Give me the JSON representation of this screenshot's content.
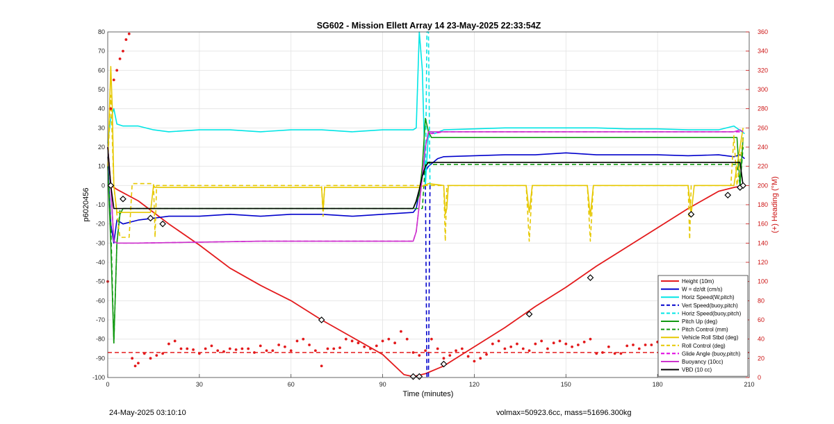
{
  "footer": {
    "timestamp": "24-May-2025 03:10:10",
    "mass_info": "volmax=50923.6cc, mass=51696.300kg"
  },
  "chart_data": {
    "type": "line",
    "title": "SG602 - Mission Ellett Array 14 23-May-2025 22:33:54Z",
    "xlabel": "Time (minutes)",
    "ylabel": "p6020456",
    "y2label": "(+) Heading (°M)",
    "xlim": [
      0,
      210
    ],
    "ylim": [
      -100,
      80
    ],
    "y2lim": [
      0,
      360
    ],
    "xticks": [
      0,
      30,
      60,
      90,
      120,
      150,
      180,
      210
    ],
    "yticks": [
      -100,
      -90,
      -80,
      -70,
      -60,
      -50,
      -40,
      -30,
      -20,
      -10,
      0,
      10,
      20,
      30,
      40,
      50,
      60,
      70,
      80
    ],
    "y2ticks": [
      0,
      20,
      40,
      60,
      80,
      100,
      120,
      140,
      160,
      180,
      200,
      220,
      240,
      260,
      280,
      300,
      320,
      340,
      360
    ],
    "grid": true,
    "legend_position": "bottom-right",
    "colors": {
      "height": "#e31a1c",
      "w": "#0000cc",
      "horiz_speed": "#00e5e5",
      "pitch": "#119911",
      "roll": "#e6c800",
      "glide_angle": "#e000e0",
      "buoyancy": "#cc33cc",
      "vbd": "#000000",
      "heading": "#e31a1c"
    },
    "legend": [
      {
        "name": "Height (10m)",
        "color": "#e31a1c",
        "dash": false
      },
      {
        "name": "W = dz/dt (cm/s)",
        "color": "#0000cc",
        "dash": false
      },
      {
        "name": "Horiz Speed(W,pitch)",
        "color": "#00e5e5",
        "dash": false
      },
      {
        "name": "Vert Speed(buoy,pitch)",
        "color": "#0000cc",
        "dash": true
      },
      {
        "name": "Horiz Speed(buoy,pitch)",
        "color": "#00e5e5",
        "dash": true
      },
      {
        "name": "Pitch Up (deg)",
        "color": "#119911",
        "dash": false
      },
      {
        "name": "Pitch Control (mm)",
        "color": "#119911",
        "dash": true
      },
      {
        "name": "Vehicle Roll Stbd (deg)",
        "color": "#e6c800",
        "dash": false
      },
      {
        "name": "Roll Control (deg)",
        "color": "#e6c800",
        "dash": true
      },
      {
        "name": "Glide Angle (buoy,pitch)",
        "color": "#e000e0",
        "dash": true
      },
      {
        "name": "Buoyancy (10cc)",
        "color": "#cc33cc",
        "dash": false
      },
      {
        "name": "VBD (10 cc)",
        "color": "#000000",
        "dash": false
      }
    ],
    "series": [
      {
        "name": "Height (10m)",
        "axis": "left",
        "x": [
          0,
          1,
          3,
          10,
          20,
          30,
          40,
          50,
          60,
          70,
          80,
          90,
          97,
          100,
          104,
          110,
          120,
          130,
          140,
          150,
          160,
          170,
          180,
          190,
          200,
          205,
          208.5
        ],
        "y": [
          20,
          0,
          -2,
          -8,
          -20,
          -31,
          -43,
          -52,
          -60,
          -70,
          -79,
          -88,
          -98.5,
          -99.5,
          -98,
          -94,
          -84,
          -74,
          -63,
          -53,
          -42,
          -32,
          -22,
          -12,
          -3,
          -1,
          0
        ]
      },
      {
        "name": "W = dz/dt (cm/s)",
        "axis": "left",
        "x": [
          0,
          1,
          2,
          3,
          5,
          10,
          15,
          20,
          30,
          40,
          50,
          60,
          70,
          80,
          90,
          100,
          101,
          103,
          105,
          108,
          110,
          120,
          130,
          140,
          150,
          160,
          170,
          180,
          190,
          200,
          205,
          207,
          208.5
        ],
        "y": [
          15,
          -20,
          -30,
          -18,
          -20,
          -18,
          -17,
          -16,
          -16,
          -15,
          -16,
          -15,
          -15,
          -16,
          -15,
          -14,
          -12,
          5,
          10,
          14,
          15,
          15.5,
          16,
          16,
          17,
          16,
          16,
          16,
          15.5,
          16,
          15,
          16,
          14
        ]
      },
      {
        "name": "Horiz Speed(W,pitch)",
        "axis": "left",
        "x": [
          0,
          1,
          2,
          3,
          5,
          10,
          15,
          20,
          30,
          40,
          50,
          60,
          70,
          80,
          90,
          100,
          101,
          102,
          103,
          104,
          105,
          106,
          107,
          110,
          120,
          130,
          140,
          150,
          160,
          170,
          180,
          190,
          200,
          205,
          208.5
        ],
        "y": [
          22,
          35,
          40,
          32,
          31,
          31,
          29,
          28,
          29,
          29,
          28,
          29,
          29,
          28,
          29,
          29,
          30,
          80,
          60,
          0,
          28,
          28,
          27,
          29,
          29.5,
          30,
          30,
          30,
          30,
          29.5,
          29.5,
          29,
          29,
          31,
          27
        ]
      },
      {
        "name": "Vert Speed(buoy,pitch)",
        "axis": "left",
        "dash": true,
        "x": [
          104,
          104.5,
          105,
          105.5
        ],
        "y": [
          0,
          -100,
          -100,
          0
        ]
      },
      {
        "name": "Horiz Speed(buoy,pitch)",
        "axis": "left",
        "dash": true,
        "x": [
          104,
          104.5,
          105,
          105.5
        ],
        "y": [
          0,
          80,
          80,
          0
        ]
      },
      {
        "name": "Pitch Up (deg)",
        "axis": "left",
        "x": [
          0,
          1,
          2,
          3,
          4,
          5,
          10,
          50,
          100,
          102,
          103,
          104,
          105,
          106,
          110,
          150,
          200,
          206,
          207,
          208
        ],
        "y": [
          10,
          -30,
          -82,
          -30,
          -15,
          -12,
          -12,
          -12,
          -12,
          -5,
          10,
          35,
          28,
          25,
          25,
          25,
          25,
          25,
          0,
          25
        ]
      },
      {
        "name": "Pitch Control (mm)",
        "axis": "left",
        "dash": true,
        "x": [
          0,
          1,
          2,
          3,
          4,
          5,
          10,
          50,
          100,
          103,
          104,
          105,
          106,
          110,
          150,
          200,
          206,
          207,
          208
        ],
        "y": [
          10,
          -20,
          -82,
          -30,
          -13,
          -12,
          -12,
          -12,
          -12,
          -12,
          12,
          12,
          11,
          11,
          11,
          11,
          11,
          0,
          20
        ]
      },
      {
        "name": "Vehicle Roll Stbd (deg)",
        "axis": "left",
        "x": [
          0,
          1,
          1.5,
          2,
          3,
          4,
          10,
          14,
          15,
          15.5,
          16,
          30,
          50,
          70,
          70.5,
          71,
          80,
          100,
          102,
          105,
          110,
          110.5,
          111,
          111.5,
          130,
          137,
          138,
          139,
          150,
          157,
          158,
          159,
          180,
          190,
          191,
          192,
          203,
          204,
          205,
          208
        ],
        "y": [
          10,
          62,
          40,
          0,
          -14,
          -14,
          -14,
          -14,
          0,
          -1,
          -1,
          -1,
          -1,
          -1,
          -13,
          -1,
          -1,
          -1,
          -1,
          1,
          0,
          -15,
          -12,
          0,
          0,
          0,
          -14,
          0,
          0,
          0,
          -16,
          0,
          0,
          0,
          -15,
          0,
          0,
          0,
          0,
          30
        ]
      },
      {
        "name": "Roll Control (deg)",
        "axis": "left",
        "dash": true,
        "x": [
          0,
          1,
          2,
          3,
          4,
          5,
          7,
          8,
          14,
          15,
          15.5,
          16,
          18,
          19,
          20,
          30,
          50,
          70,
          70.5,
          71,
          100,
          105,
          110,
          110.5,
          111,
          130,
          137,
          138,
          139,
          157,
          158,
          159,
          190,
          190.5,
          191,
          204,
          205,
          206,
          208
        ],
        "y": [
          10,
          47,
          0,
          -15,
          -27,
          -27,
          -27,
          1,
          1,
          1,
          -27,
          0,
          0,
          0,
          0,
          0,
          0,
          0,
          -16,
          0,
          0,
          0,
          0,
          -29,
          0,
          0,
          0,
          -29,
          0,
          0,
          -29,
          0,
          0,
          -28,
          0,
          0,
          26,
          0,
          25
        ]
      },
      {
        "name": "Glide Angle (buoy,pitch)",
        "axis": "left",
        "dash": true,
        "x": [
          0,
          1,
          2,
          3,
          5,
          10,
          50,
          100,
          101,
          102,
          103,
          104,
          105,
          106,
          110,
          150,
          200,
          205,
          207,
          208
        ],
        "y": [
          20,
          0,
          -29,
          -30,
          -30,
          -30,
          -29,
          -29,
          -24,
          -10,
          5,
          20,
          28,
          27,
          28,
          28,
          28,
          28,
          28,
          28
        ]
      },
      {
        "name": "Buoyancy (10cc)",
        "axis": "left",
        "x": [
          0,
          1,
          2,
          3,
          5,
          10,
          50,
          100,
          101,
          102,
          103,
          104,
          105,
          106,
          110,
          150,
          200,
          205,
          207,
          208
        ],
        "y": [
          20,
          0,
          -29,
          -30,
          -30,
          -30,
          -29,
          -29,
          -24,
          -10,
          5,
          20,
          28,
          28,
          28,
          28,
          28,
          28,
          29,
          28
        ]
      },
      {
        "name": "VBD (10 cc)",
        "axis": "left",
        "x": [
          0,
          1,
          2,
          3,
          5,
          10,
          50,
          100,
          101,
          102,
          103,
          104,
          105,
          106,
          110,
          150,
          200,
          207,
          208
        ],
        "y": [
          20,
          0,
          -12,
          -12,
          -12,
          -12,
          -12,
          -12,
          -8,
          -2,
          5,
          10,
          12,
          12,
          12,
          12,
          12,
          12,
          0
        ]
      },
      {
        "name": "Heading",
        "axis": "right",
        "style": "dots",
        "x": [
          0,
          1,
          2,
          3,
          4,
          5,
          6,
          7,
          8,
          9,
          10,
          12,
          14,
          16,
          18,
          20,
          22,
          24,
          26,
          28,
          30,
          32,
          34,
          36,
          38,
          40,
          42,
          44,
          46,
          48,
          50,
          52,
          54,
          56,
          58,
          60,
          62,
          64,
          66,
          68,
          70,
          72,
          74,
          76,
          78,
          80,
          82,
          84,
          86,
          88,
          90,
          92,
          94,
          96,
          98,
          100,
          102,
          104,
          106,
          108,
          110,
          112,
          114,
          116,
          118,
          120,
          122,
          124,
          126,
          128,
          130,
          132,
          134,
          136,
          138,
          140,
          142,
          144,
          146,
          148,
          150,
          152,
          154,
          156,
          158,
          160,
          162,
          164,
          166,
          168,
          170,
          172,
          174,
          176,
          178,
          180,
          182,
          184,
          186,
          188,
          190,
          192,
          194,
          196,
          198,
          200,
          202,
          204,
          206,
          207,
          208
        ],
        "y": [
          100,
          280,
          310,
          320,
          332,
          340,
          352,
          358,
          20,
          12,
          15,
          25,
          20,
          23,
          25,
          35,
          38,
          30,
          30,
          29,
          25,
          30,
          33,
          28,
          27,
          30,
          29,
          30,
          30,
          26,
          33,
          28,
          28,
          34,
          32,
          28,
          38,
          40,
          34,
          28,
          12,
          30,
          30,
          31,
          40,
          38,
          36,
          32,
          30,
          33,
          38,
          40,
          36,
          48,
          40,
          26,
          23,
          28,
          40,
          30,
          20,
          23,
          28,
          30,
          22,
          17,
          20,
          24,
          35,
          38,
          30,
          32,
          35,
          30,
          28,
          35,
          38,
          30,
          36,
          38,
          35,
          32,
          34,
          37,
          40,
          25,
          26,
          32,
          25,
          25,
          33,
          34,
          30,
          34,
          34,
          37,
          32,
          32,
          38,
          36,
          40,
          38,
          34,
          38,
          43,
          30,
          28,
          32,
          38,
          20,
          10
        ]
      },
      {
        "name": "Heading reference",
        "axis": "right",
        "dash": true,
        "x": [
          0,
          210
        ],
        "y": [
          26,
          26
        ]
      }
    ],
    "markers": [
      {
        "x": 1,
        "y": 0
      },
      {
        "x": 5,
        "y": -7
      },
      {
        "x": 14,
        "y": -17
      },
      {
        "x": 18,
        "y": -20
      },
      {
        "x": 70,
        "y": -70
      },
      {
        "x": 100,
        "y": -99.5
      },
      {
        "x": 102,
        "y": -99.5
      },
      {
        "x": 110,
        "y": -93
      },
      {
        "x": 138,
        "y": -67
      },
      {
        "x": 158,
        "y": -48
      },
      {
        "x": 191,
        "y": -15
      },
      {
        "x": 203,
        "y": -5
      },
      {
        "x": 207,
        "y": -1
      },
      {
        "x": 208,
        "y": 0
      }
    ]
  }
}
